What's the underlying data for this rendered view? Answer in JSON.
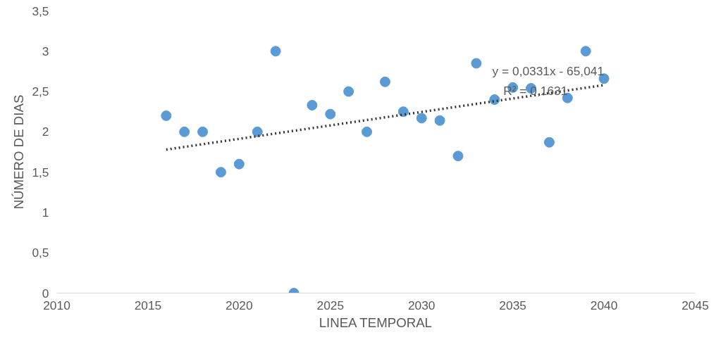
{
  "chart_data": {
    "type": "scatter",
    "xlabel": "LINEA TEMPORAL",
    "ylabel": "NÚMERO DE DIAS",
    "xlim": [
      2010,
      2045
    ],
    "xticks": [
      2010,
      2015,
      2020,
      2025,
      2030,
      2035,
      2040,
      2045
    ],
    "ylim": [
      0,
      3.5
    ],
    "yticks": [
      0,
      {
        "value": 0.5,
        "label": "0,5"
      },
      1,
      {
        "value": 1.5,
        "label": "1,5"
      },
      2,
      {
        "value": 2.5,
        "label": "2,5"
      },
      3,
      {
        "value": 3.5,
        "label": "3,5"
      }
    ],
    "grid": false,
    "series": [
      {
        "color": "#5b9bd5",
        "marker": "circle",
        "x": [
          2016,
          2017,
          2018,
          2019,
          2020,
          2021,
          2022,
          2023,
          2024,
          2025,
          2026,
          2027,
          2028,
          2029,
          2030,
          2031,
          2032,
          2033,
          2034,
          2035,
          2036,
          2037,
          2038,
          2039,
          2040
        ],
        "values": [
          2.2,
          2.0,
          2.0,
          1.5,
          1.6,
          2.0,
          3.0,
          0,
          2.33,
          2.22,
          2.5,
          2.0,
          2.62,
          2.25,
          2.17,
          2.14,
          1.7,
          2.85,
          2.4,
          2.55,
          2.54,
          1.87,
          2.42,
          3.0,
          2.66
        ]
      },
      {
        "type": "line",
        "color": "#333333",
        "line_style": "dotted",
        "x": [
          2016,
          2040
        ],
        "values": [
          1.78,
          2.58
        ]
      }
    ],
    "annotations": [
      {
        "text": "y = 0,0331x - 65,041",
        "x": 2040,
        "y": 2.67
      },
      {
        "text": "R² = 0,1631",
        "x": 2038,
        "y": 2.42
      }
    ]
  }
}
